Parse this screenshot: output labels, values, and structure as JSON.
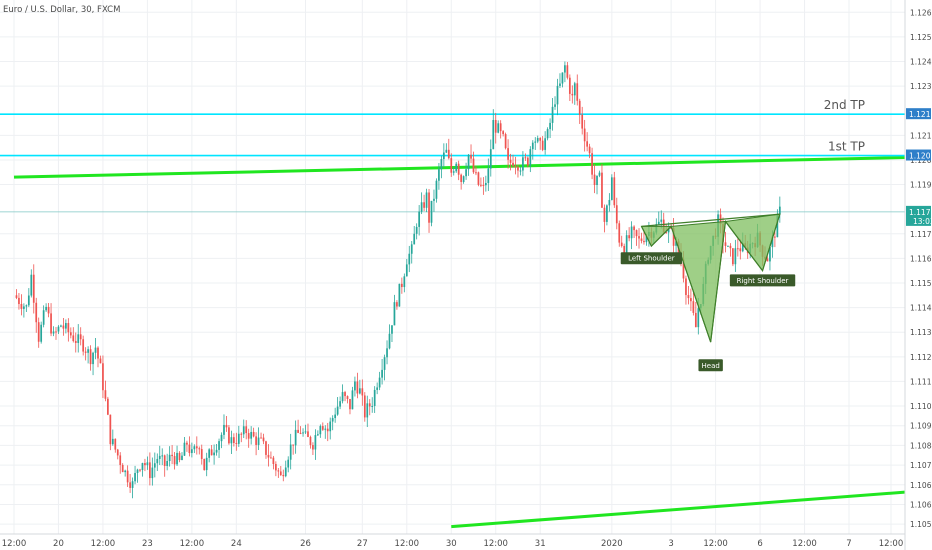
{
  "header": {
    "symbol_label": "Euro / U.S. Dollar, 30, FXCM"
  },
  "colors": {
    "up": "#26a69a",
    "down": "#ef5350",
    "level": "#00e5ff",
    "trend": "#20e620",
    "pattern_fill": "#7fbf5f",
    "pattern_stroke": "#3f7f2a",
    "label_bg": "#3a5a2a",
    "price_tag": "#2e7fc9"
  },
  "chart_data": {
    "type": "candlestick",
    "title": "Euro / U.S. Dollar, 30, FXCM",
    "ylim": [
      1.1048,
      1.1265
    ],
    "x_index_range": [
      0,
      355
    ],
    "grid": true,
    "y_ticks": [
      "1.12600",
      "1.12500",
      "1.12400",
      "1.12300",
      "1.12100",
      "1.12000",
      "1.11900",
      "1.11700",
      "1.11600",
      "1.11500",
      "1.11400",
      "1.11300",
      "1.11200",
      "1.11100",
      "1.11000",
      "1.10920",
      "1.10840",
      "1.10760",
      "1.10680",
      "1.10600",
      "1.10520"
    ],
    "x_ticks": [
      {
        "label": "12:00",
        "i": 0
      },
      {
        "label": "20",
        "i": 18
      },
      {
        "label": "12:00",
        "i": 36
      },
      {
        "label": "23",
        "i": 54
      },
      {
        "label": "12:00",
        "i": 72
      },
      {
        "label": "24",
        "i": 90
      },
      {
        "label": "26",
        "i": 118
      },
      {
        "label": "27",
        "i": 141
      },
      {
        "label": "12:00",
        "i": 159
      },
      {
        "label": "30",
        "i": 177
      },
      {
        "label": "12:00",
        "i": 195
      },
      {
        "label": "31",
        "i": 213
      },
      {
        "label": "2020",
        "i": 242
      },
      {
        "label": "3",
        "i": 266
      },
      {
        "label": "12:00",
        "i": 284
      },
      {
        "label": "6",
        "i": 302
      },
      {
        "label": "12:00",
        "i": 320
      },
      {
        "label": "7",
        "i": 338
      },
      {
        "label": "12:00",
        "i": 355
      }
    ],
    "price_path": [
      [
        0,
        1.1145
      ],
      [
        5,
        1.114
      ],
      [
        7,
        1.1153
      ],
      [
        10,
        1.1128
      ],
      [
        13,
        1.114
      ],
      [
        16,
        1.1128
      ],
      [
        19,
        1.1133
      ],
      [
        22,
        1.113
      ],
      [
        25,
        1.1127
      ],
      [
        28,
        1.1125
      ],
      [
        31,
        1.112
      ],
      [
        33,
        1.1124
      ],
      [
        35,
        1.1115
      ],
      [
        37,
        1.1102
      ],
      [
        39,
        1.1087
      ],
      [
        42,
        1.108
      ],
      [
        45,
        1.1073
      ],
      [
        48,
        1.1068
      ],
      [
        50,
        1.1075
      ],
      [
        52,
        1.1078
      ],
      [
        55,
        1.1073
      ],
      [
        58,
        1.1079
      ],
      [
        61,
        1.1076
      ],
      [
        64,
        1.108
      ],
      [
        67,
        1.1077
      ],
      [
        70,
        1.1085
      ],
      [
        72,
        1.108
      ],
      [
        75,
        1.1085
      ],
      [
        77,
        1.1075
      ],
      [
        79,
        1.108
      ],
      [
        82,
        1.1085
      ],
      [
        85,
        1.109
      ],
      [
        88,
        1.1086
      ],
      [
        91,
        1.1087
      ],
      [
        94,
        1.109
      ],
      [
        97,
        1.1087
      ],
      [
        100,
        1.1085
      ],
      [
        103,
        1.108
      ],
      [
        106,
        1.1075
      ],
      [
        108,
        1.1071
      ],
      [
        110,
        1.1078
      ],
      [
        113,
        1.1086
      ],
      [
        116,
        1.109
      ],
      [
        118,
        1.1087
      ],
      [
        121,
        1.1085
      ],
      [
        124,
        1.1094
      ],
      [
        127,
        1.109
      ],
      [
        130,
        1.1098
      ],
      [
        133,
        1.1104
      ],
      [
        136,
        1.11
      ],
      [
        138,
        1.111
      ],
      [
        140,
        1.1106
      ],
      [
        142,
        1.1097
      ],
      [
        145,
        1.1102
      ],
      [
        148,
        1.1114
      ],
      [
        151,
        1.1125
      ],
      [
        154,
        1.114
      ],
      [
        157,
        1.115
      ],
      [
        159,
        1.116
      ],
      [
        161,
        1.1163
      ],
      [
        163,
        1.1175
      ],
      [
        165,
        1.118
      ],
      [
        167,
        1.1185
      ],
      [
        168,
        1.1176
      ],
      [
        171,
        1.119
      ],
      [
        173,
        1.12
      ],
      [
        175,
        1.1203
      ],
      [
        177,
        1.1195
      ],
      [
        179,
        1.12
      ],
      [
        181,
        1.1192
      ],
      [
        184,
        1.1202
      ],
      [
        186,
        1.1195
      ],
      [
        188,
        1.119
      ],
      [
        190,
        1.1188
      ],
      [
        192,
        1.1195
      ],
      [
        194,
        1.1215
      ],
      [
        196,
        1.1212
      ],
      [
        198,
        1.1208
      ],
      [
        200,
        1.1198
      ],
      [
        202,
        1.12
      ],
      [
        205,
        1.1198
      ],
      [
        208,
        1.12
      ],
      [
        210,
        1.121
      ],
      [
        213,
        1.1205
      ],
      [
        216,
        1.121
      ],
      [
        219,
        1.1225
      ],
      [
        221,
        1.123
      ],
      [
        223,
        1.1238
      ],
      [
        224,
        1.1233
      ],
      [
        226,
        1.1225
      ],
      [
        227,
        1.123
      ],
      [
        229,
        1.1218
      ],
      [
        231,
        1.121
      ],
      [
        233,
        1.1202
      ],
      [
        235,
        1.119
      ],
      [
        237,
        1.1192
      ],
      [
        239,
        1.1175
      ],
      [
        241,
        1.1185
      ],
      [
        242,
        1.1193
      ],
      [
        243,
        1.118
      ],
      [
        245,
        1.1168
      ],
      [
        247,
        1.1165
      ],
      [
        250,
        1.117
      ],
      [
        253,
        1.1167
      ],
      [
        256,
        1.117
      ],
      [
        259,
        1.1172
      ],
      [
        262,
        1.1175
      ],
      [
        264,
        1.1172
      ],
      [
        266,
        1.117
      ],
      [
        268,
        1.1165
      ],
      [
        270,
        1.116
      ],
      [
        272,
        1.1148
      ],
      [
        274,
        1.114
      ],
      [
        276,
        1.1132
      ],
      [
        277,
        1.114
      ],
      [
        279,
        1.1148
      ],
      [
        281,
        1.1162
      ],
      [
        283,
        1.1168
      ],
      [
        285,
        1.1175
      ],
      [
        287,
        1.1168
      ],
      [
        289,
        1.1163
      ],
      [
        291,
        1.116
      ],
      [
        293,
        1.1165
      ],
      [
        296,
        1.1163
      ],
      [
        299,
        1.1167
      ],
      [
        301,
        1.1168
      ],
      [
        303,
        1.1163
      ],
      [
        305,
        1.116
      ],
      [
        307,
        1.1167
      ],
      [
        309,
        1.1175
      ],
      [
        310,
        1.11789
      ]
    ],
    "levels": [
      {
        "name": "2nd TP",
        "price": 1.12186,
        "label": "1.12186"
      },
      {
        "name": "1st TP",
        "price": 1.12018,
        "label": "1.12018"
      }
    ],
    "current_price": {
      "label": "1.11789",
      "price": 1.11789,
      "countdown": "13:03"
    },
    "trendlines": [
      {
        "from": [
          0,
          1.1193
        ],
        "to": [
          355,
          1.1201
        ]
      },
      {
        "from": [
          177,
          1.1051
        ],
        "to": [
          355,
          1.1065
        ]
      }
    ],
    "pattern": {
      "name": "inverse head and shoulders",
      "points": [
        [
          254,
          1.1173
        ],
        [
          258,
          1.1165
        ],
        [
          266,
          1.1173
        ],
        [
          282,
          1.1126
        ],
        [
          288,
          1.1175
        ],
        [
          303,
          1.1155
        ],
        [
          310,
          1.1178
        ]
      ],
      "labels": [
        {
          "text": "Left Shoulder",
          "at": [
            258,
            1.11625
          ]
        },
        {
          "text": "Head",
          "at": [
            282,
            1.1119
          ]
        },
        {
          "text": "Right Shoulder",
          "at": [
            303,
            1.11535
          ]
        }
      ]
    }
  }
}
